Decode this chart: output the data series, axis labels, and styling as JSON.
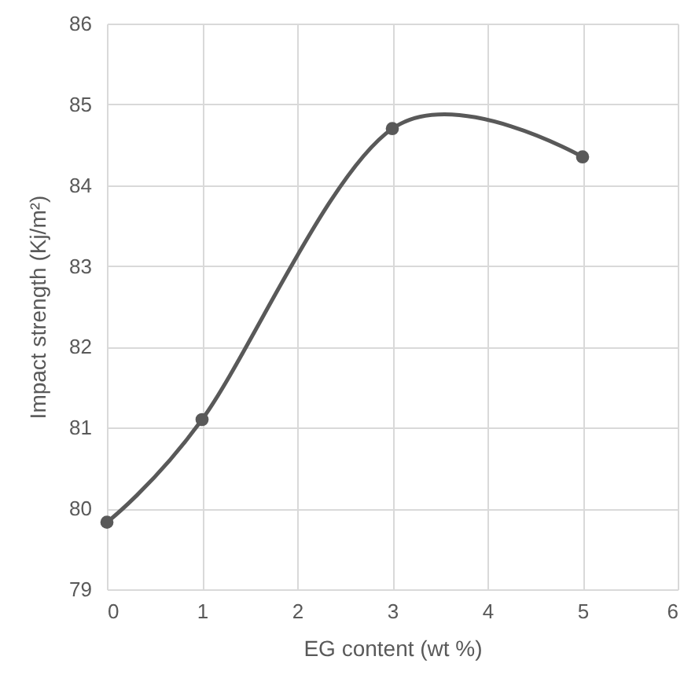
{
  "chart_data": {
    "type": "line",
    "xlabel": "EG content (wt %)",
    "ylabel": "Impact strength (Kj/m²)",
    "x": [
      0,
      1,
      3,
      5
    ],
    "series": [
      {
        "color": "#595959",
        "values": [
          79.83,
          81.1,
          84.7,
          84.35
        ]
      }
    ],
    "xlim": [
      0,
      6
    ],
    "xticks": [
      0,
      1,
      2,
      3,
      4,
      5,
      6
    ],
    "ylim": [
      79,
      86
    ],
    "yticks": [
      79,
      80,
      81,
      82,
      83,
      84,
      85,
      86
    ],
    "grid": true,
    "marker": "circle",
    "line_style": "solid"
  }
}
